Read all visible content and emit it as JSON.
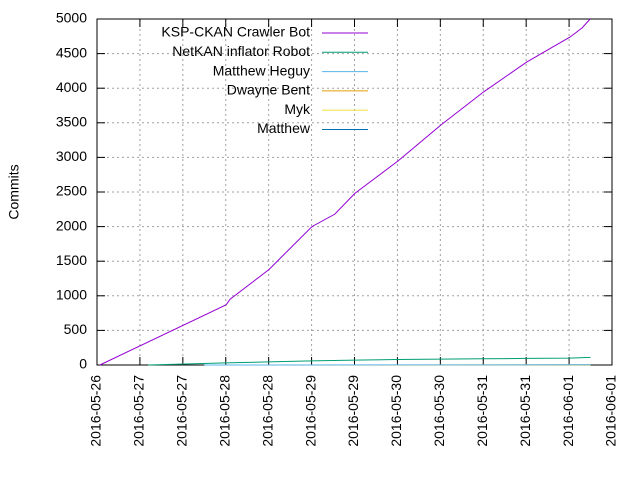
{
  "chart_data": {
    "type": "line",
    "ylabel": "Commits",
    "xlim": [
      0,
      144
    ],
    "xticks": [
      {
        "value": 0,
        "label": "2016-05-26"
      },
      {
        "value": 12,
        "label": "2016-05-27"
      },
      {
        "value": 24,
        "label": "2016-05-27"
      },
      {
        "value": 36,
        "label": "2016-05-28"
      },
      {
        "value": 48,
        "label": "2016-05-28"
      },
      {
        "value": 60,
        "label": "2016-05-29"
      },
      {
        "value": 72,
        "label": "2016-05-29"
      },
      {
        "value": 84,
        "label": "2016-05-30"
      },
      {
        "value": 96,
        "label": "2016-05-30"
      },
      {
        "value": 108,
        "label": "2016-05-31"
      },
      {
        "value": 120,
        "label": "2016-05-31"
      },
      {
        "value": 132,
        "label": "2016-06-01"
      },
      {
        "value": 144,
        "label": "2016-06-01"
      }
    ],
    "ylim": [
      0,
      5000
    ],
    "yticks": [
      0,
      500,
      1000,
      1500,
      2000,
      2500,
      3000,
      3500,
      4000,
      4500,
      5000
    ],
    "grid": true,
    "legend": "top-left",
    "series": [
      {
        "name": "KSP-CKAN Crawler Bot",
        "color": "#9400d3",
        "x": [
          0.8,
          36.1,
          37.2,
          48.1,
          60.1,
          66.5,
          72.1,
          84.2,
          96.2,
          108.2,
          120.2,
          132.3,
          135.6,
          137.9
        ],
        "values": [
          0,
          870,
          950,
          1380,
          2000,
          2180,
          2480,
          2950,
          3470,
          3950,
          4380,
          4740,
          4870,
          5000
        ]
      },
      {
        "name": "NetKAN inflator Robot",
        "color": "#009e73",
        "x": [
          14.3,
          36,
          48,
          60,
          72,
          84,
          96,
          108,
          120,
          132,
          138
        ],
        "values": [
          0,
          30,
          45,
          60,
          70,
          80,
          85,
          90,
          95,
          100,
          110
        ]
      },
      {
        "name": "Matthew Heguy",
        "color": "#56b4e9",
        "x": [
          30,
          138
        ],
        "values": [
          0,
          3
        ]
      },
      {
        "name": "Dwayne Bent",
        "color": "#e69f00",
        "x": [
          40,
          138
        ],
        "values": [
          0,
          2
        ]
      },
      {
        "name": "Myk",
        "color": "#f0e442",
        "x": [
          50,
          138
        ],
        "values": [
          0,
          1
        ]
      },
      {
        "name": "Matthew",
        "color": "#0072b2",
        "x": [
          60,
          138
        ],
        "values": [
          0,
          1
        ]
      }
    ]
  }
}
